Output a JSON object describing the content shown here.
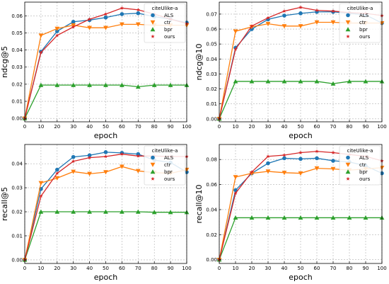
{
  "figure": {
    "description": "2x2 grid of line charts comparing ALS, ctr, bpr and ours on citeUlike-a"
  },
  "series_styles": [
    {
      "name": "ALS",
      "color": "#1f77b4",
      "marker": "circle"
    },
    {
      "name": "ctr",
      "color": "#ff7f0e",
      "marker": "triangle-down"
    },
    {
      "name": "bpr",
      "color": "#2ca02c",
      "marker": "triangle-up"
    },
    {
      "name": "ours",
      "color": "#d62728",
      "marker": "star"
    }
  ],
  "chart_data": [
    {
      "type": "line",
      "legend_title": "citeUlike-a",
      "legend_position": "top-right",
      "xlabel": "epoch",
      "ylabel": "ndcg@5",
      "grid": true,
      "xlim": [
        0,
        100
      ],
      "ylim": [
        -0.002,
        0.068
      ],
      "xticks": [
        0,
        10,
        20,
        30,
        40,
        50,
        60,
        70,
        80,
        90,
        100
      ],
      "yticks": [
        0.0,
        0.01,
        0.02,
        0.03,
        0.04,
        0.05,
        0.06
      ],
      "ytick_labels": [
        "0.00",
        "0.01",
        "0.02",
        "0.03",
        "0.04",
        "0.05",
        "0.06"
      ],
      "x": [
        0,
        10,
        20,
        30,
        40,
        50,
        60,
        70,
        80,
        90,
        100
      ],
      "series": [
        {
          "name": "ALS",
          "values": [
            0,
            0.039,
            0.051,
            0.0565,
            0.0575,
            0.059,
            0.061,
            0.0615,
            0.0595,
            0.058,
            0.056
          ]
        },
        {
          "name": "ctr",
          "values": [
            0,
            0.0485,
            0.0525,
            0.0545,
            0.053,
            0.053,
            0.055,
            0.055,
            0.0545,
            0.0545,
            0.0545
          ]
        },
        {
          "name": "bpr",
          "values": [
            0,
            0.0195,
            0.0195,
            0.0195,
            0.0195,
            0.0195,
            0.0195,
            0.0185,
            0.0195,
            0.0195,
            0.0195
          ]
        },
        {
          "name": "ours",
          "values": [
            0,
            0.0385,
            0.0485,
            0.0535,
            0.058,
            0.061,
            0.0645,
            0.0635,
            0.061,
            0.058,
            0.0555
          ]
        }
      ]
    },
    {
      "type": "line",
      "legend_title": "citeUlike-a",
      "legend_position": "top-right",
      "xlabel": "epoch",
      "ylabel": "ndcg@10",
      "grid": true,
      "xlim": [
        0,
        100
      ],
      "ylim": [
        -0.002,
        0.078
      ],
      "xticks": [
        0,
        10,
        20,
        30,
        40,
        50,
        60,
        70,
        80,
        90,
        100
      ],
      "yticks": [
        0.0,
        0.01,
        0.02,
        0.03,
        0.04,
        0.05,
        0.06,
        0.07
      ],
      "ytick_labels": [
        "0.00",
        "0.01",
        "0.02",
        "0.03",
        "0.04",
        "0.05",
        "0.06",
        "0.07"
      ],
      "x": [
        0,
        10,
        20,
        30,
        40,
        50,
        60,
        70,
        80,
        90,
        100
      ],
      "series": [
        {
          "name": "ALS",
          "values": [
            0,
            0.0475,
            0.06,
            0.0665,
            0.069,
            0.0705,
            0.0715,
            0.0715,
            0.0705,
            0.0695,
            0.064
          ]
        },
        {
          "name": "ctr",
          "values": [
            0,
            0.0585,
            0.0615,
            0.0635,
            0.062,
            0.062,
            0.0645,
            0.0645,
            0.064,
            0.064,
            0.064
          ]
        },
        {
          "name": "bpr",
          "values": [
            0,
            0.025,
            0.025,
            0.025,
            0.025,
            0.025,
            0.025,
            0.0235,
            0.025,
            0.025,
            0.025
          ]
        },
        {
          "name": "ours",
          "values": [
            0,
            0.0465,
            0.062,
            0.0675,
            0.072,
            0.0745,
            0.0725,
            0.072,
            0.071,
            0.0705,
            0.069
          ]
        }
      ]
    },
    {
      "type": "line",
      "legend_title": "citeUlike-a",
      "legend_position": "top-right",
      "xlabel": "epoch",
      "ylabel": "recall@5",
      "grid": true,
      "xlim": [
        0,
        100
      ],
      "ylim": [
        -0.0015,
        0.048
      ],
      "xticks": [
        0,
        10,
        20,
        30,
        40,
        50,
        60,
        70,
        80,
        90,
        100
      ],
      "yticks": [
        0.0,
        0.01,
        0.02,
        0.03,
        0.04
      ],
      "ytick_labels": [
        "0.00",
        "0.01",
        "0.02",
        "0.03",
        "0.04"
      ],
      "x": [
        0,
        10,
        20,
        30,
        40,
        50,
        60,
        70,
        80,
        90,
        100
      ],
      "series": [
        {
          "name": "ALS",
          "values": [
            0,
            0.0295,
            0.0375,
            0.0428,
            0.0435,
            0.0448,
            0.0445,
            0.044,
            0.0415,
            0.0405,
            0.0365
          ]
        },
        {
          "name": "ctr",
          "values": [
            0,
            0.032,
            0.034,
            0.0367,
            0.0358,
            0.0365,
            0.0388,
            0.037,
            0.0363,
            0.036,
            0.0375
          ]
        },
        {
          "name": "bpr",
          "values": [
            0,
            0.02,
            0.02,
            0.02,
            0.02,
            0.02,
            0.02,
            0.02,
            0.0198,
            0.0198,
            0.0198
          ]
        },
        {
          "name": "ours",
          "values": [
            0,
            0.0265,
            0.036,
            0.041,
            0.0425,
            0.043,
            0.044,
            0.0432,
            0.0432,
            0.043,
            0.043
          ]
        }
      ]
    },
    {
      "type": "line",
      "legend_title": "citeUlike-a",
      "legend_position": "top-right",
      "xlabel": "epoch",
      "ylabel": "recall@10",
      "grid": true,
      "xlim": [
        0,
        100
      ],
      "ylim": [
        -0.003,
        0.092
      ],
      "xticks": [
        0,
        10,
        20,
        30,
        40,
        50,
        60,
        70,
        80,
        90,
        100
      ],
      "yticks": [
        0.0,
        0.02,
        0.04,
        0.06,
        0.08
      ],
      "ytick_labels": [
        "0.00",
        "0.02",
        "0.04",
        "0.06",
        "0.08"
      ],
      "x": [
        0,
        10,
        20,
        30,
        40,
        50,
        60,
        70,
        80,
        90,
        100
      ],
      "series": [
        {
          "name": "ALS",
          "values": [
            0,
            0.0555,
            0.069,
            0.077,
            0.081,
            0.0805,
            0.081,
            0.079,
            0.078,
            0.075,
            0.069
          ]
        },
        {
          "name": "ctr",
          "values": [
            0,
            0.066,
            0.069,
            0.0705,
            0.0695,
            0.069,
            0.073,
            0.0725,
            0.0715,
            0.0725,
            0.0735
          ]
        },
        {
          "name": "bpr",
          "values": [
            0,
            0.0335,
            0.0335,
            0.0335,
            0.0335,
            0.0335,
            0.0335,
            0.0335,
            0.0335,
            0.0335,
            0.0335
          ]
        },
        {
          "name": "ours",
          "values": [
            0,
            0.053,
            0.07,
            0.0825,
            0.0835,
            0.0855,
            0.0865,
            0.0855,
            0.084,
            0.0825,
            0.079
          ]
        }
      ]
    }
  ]
}
